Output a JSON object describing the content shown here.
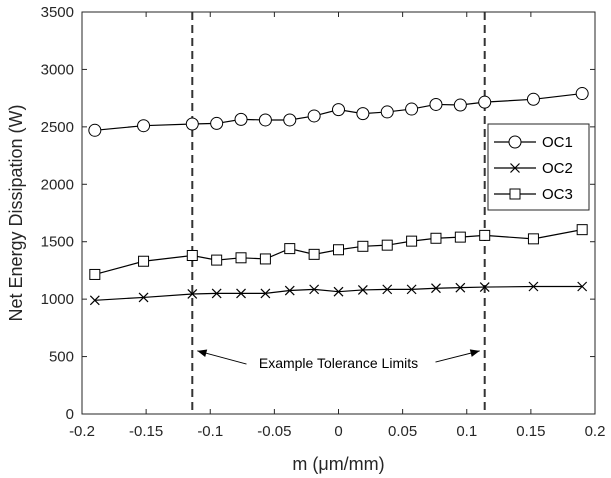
{
  "chart_data": {
    "type": "line",
    "xlabel": "m (μm/mm)",
    "ylabel": "Net Energy Dissipation (W)",
    "xlim": [
      -0.2,
      0.2
    ],
    "ylim": [
      0,
      3500
    ],
    "xticks": [
      -0.2,
      -0.15,
      -0.1,
      -0.05,
      0,
      0.05,
      0.1,
      0.15,
      0.2
    ],
    "xtick_labels": [
      "-0.2",
      "-0.15",
      "-0.1",
      "-0.05",
      "0",
      "0.05",
      "0.1",
      "0.15",
      "0.2"
    ],
    "yticks": [
      0,
      500,
      1000,
      1500,
      2000,
      2500,
      3000,
      3500
    ],
    "ytick_labels": [
      "0",
      "500",
      "1000",
      "1500",
      "2000",
      "2500",
      "3000",
      "3500"
    ],
    "grid": false,
    "legend_position": "right",
    "x": [
      -0.19,
      -0.152,
      -0.114,
      -0.095,
      -0.076,
      -0.057,
      -0.038,
      -0.019,
      0,
      0.019,
      0.038,
      0.057,
      0.076,
      0.095,
      0.114,
      0.152,
      0.19
    ],
    "series": [
      {
        "name": "OC1",
        "marker": "circle",
        "values": [
          2470,
          2510,
          2525,
          2530,
          2565,
          2560,
          2560,
          2595,
          2650,
          2615,
          2630,
          2655,
          2695,
          2690,
          2715,
          2740,
          2790
        ]
      },
      {
        "name": "OC2",
        "marker": "x",
        "values": [
          990,
          1015,
          1045,
          1050,
          1050,
          1050,
          1075,
          1085,
          1065,
          1080,
          1085,
          1085,
          1095,
          1100,
          1105,
          1110,
          1110
        ]
      },
      {
        "name": "OC3",
        "marker": "square",
        "values": [
          1215,
          1330,
          1380,
          1340,
          1360,
          1350,
          1440,
          1390,
          1430,
          1460,
          1470,
          1505,
          1530,
          1540,
          1555,
          1525,
          1605
        ]
      }
    ],
    "vlines": [
      -0.114,
      0.114
    ],
    "annotation": {
      "text": "Example Tolerance Limits"
    }
  }
}
